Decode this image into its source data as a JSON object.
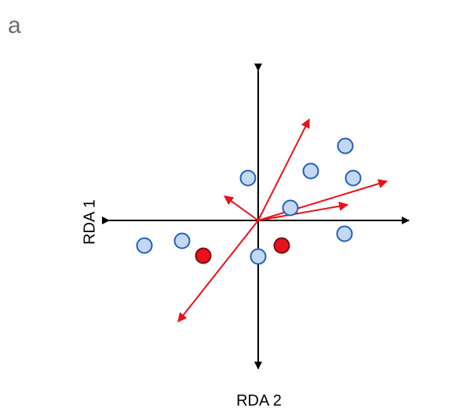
{
  "panel_label": "a",
  "axis_labels": {
    "x": "RDA 2",
    "y": "RDA 1"
  },
  "colors": {
    "axis": "#000000",
    "arrow": "#e8121b",
    "blue_fill": "#c5d8f2",
    "blue_stroke": "#1f5fc4",
    "red_fill": "#e8121b",
    "red_stroke": "#7a0b0b"
  }
}
